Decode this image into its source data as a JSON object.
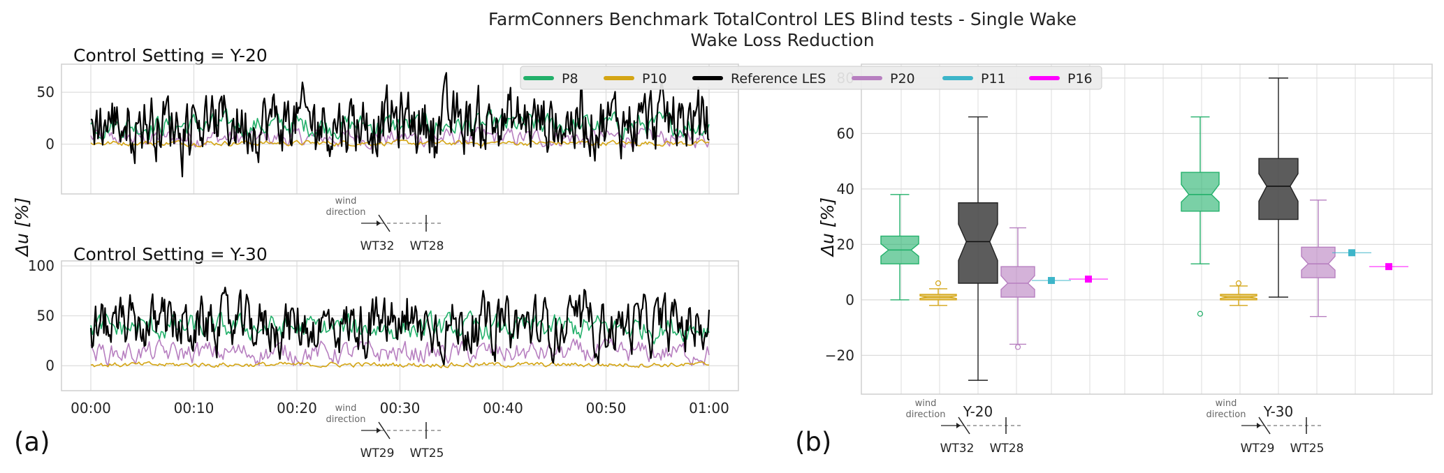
{
  "figure": {
    "title_line1": "FarmConners Benchmark TotalControl LES Blind tests - Single Wake",
    "title_line2": "Wake Loss Reduction",
    "panel_a_label": "(a)",
    "panel_b_label": "(b)",
    "ylabel": "Δu  [%]"
  },
  "legend": {
    "items": [
      {
        "name": "P8",
        "color": "#22b06a"
      },
      {
        "name": "P10",
        "color": "#d4a514"
      },
      {
        "name": "Reference LES",
        "color": "#000000"
      },
      {
        "name": "P20",
        "color": "#b77fc0"
      },
      {
        "name": "P11",
        "color": "#3db5c9"
      },
      {
        "name": "P16",
        "color": "#ff00ff"
      }
    ]
  },
  "chart_data": [
    {
      "type": "line",
      "title": "Control Setting = Y-20",
      "xlabel": "",
      "ylabel": "Δu  [%]",
      "yticks": [
        0,
        50
      ],
      "ylim": [
        -48,
        77
      ],
      "xlim": [
        0,
        60
      ],
      "grid": true,
      "note": {
        "text": "wind direction",
        "turbines": [
          "WT32",
          "WT28"
        ]
      },
      "series": [
        {
          "name": "P8",
          "color": "#22b06a",
          "mean": 18,
          "amplitude": 9
        },
        {
          "name": "P10",
          "color": "#d4a514",
          "mean": 1,
          "amplitude": 2
        },
        {
          "name": "Reference LES",
          "color": "#000000",
          "mean": 22,
          "amplitude": 25
        },
        {
          "name": "P20",
          "color": "#b77fc0",
          "mean": 6,
          "amplitude": 7
        }
      ]
    },
    {
      "type": "line",
      "title": "Control Setting = Y-30",
      "xlabel": "",
      "ylabel": "Δu  [%]",
      "xticklabels": [
        "00:00",
        "00:10",
        "00:20",
        "00:30",
        "00:40",
        "00:50",
        "01:00"
      ],
      "yticks": [
        0,
        50,
        100
      ],
      "ylim": [
        -25,
        105
      ],
      "xlim": [
        0,
        60
      ],
      "grid": true,
      "note": {
        "text": "wind direction",
        "turbines": [
          "WT29",
          "WT25"
        ]
      },
      "series": [
        {
          "name": "P8",
          "color": "#22b06a",
          "mean": 38,
          "amplitude": 10
        },
        {
          "name": "P10",
          "color": "#d4a514",
          "mean": 1,
          "amplitude": 2
        },
        {
          "name": "Reference LES",
          "color": "#000000",
          "mean": 40,
          "amplitude": 22
        },
        {
          "name": "P20",
          "color": "#b77fc0",
          "mean": 13,
          "amplitude": 9
        }
      ]
    },
    {
      "type": "box",
      "title": "",
      "ylabel": "Δu  [%]",
      "ylim": [
        -34,
        85
      ],
      "yticks": [
        -20,
        0,
        20,
        40,
        60,
        80
      ],
      "categories": [
        "Y-20",
        "Y-30"
      ],
      "grid": true,
      "notes": [
        {
          "text": "wind direction",
          "turbines": [
            "WT32",
            "WT28"
          ]
        },
        {
          "text": "wind direction",
          "turbines": [
            "WT29",
            "WT25"
          ]
        }
      ],
      "boxes": [
        {
          "group": "Y-20",
          "name": "P8",
          "color": "#22b06a",
          "whislo": 0,
          "q1": 13,
          "med": 18,
          "q3": 23,
          "whishi": 38,
          "fliers": []
        },
        {
          "group": "Y-20",
          "name": "P10",
          "color": "#d4a514",
          "whislo": -2,
          "q1": 0,
          "med": 1,
          "q3": 2,
          "whishi": 4,
          "fliers": [
            6
          ]
        },
        {
          "group": "Y-20",
          "name": "Reference LES",
          "color": "#000000",
          "whislo": -29,
          "q1": 6,
          "med": 21,
          "q3": 35,
          "whishi": 66,
          "fliers": []
        },
        {
          "group": "Y-20",
          "name": "P20",
          "color": "#b77fc0",
          "whislo": -16,
          "q1": 1,
          "med": 6,
          "q3": 12,
          "whishi": 26,
          "fliers": [
            -17
          ]
        },
        {
          "group": "Y-20",
          "name": "P11",
          "color": "#3db5c9",
          "whislo": 7,
          "q1": 7,
          "med": 7,
          "q3": 7,
          "whishi": 7,
          "fliers": []
        },
        {
          "group": "Y-20",
          "name": "P16",
          "color": "#ff00ff",
          "whislo": 7.5,
          "q1": 7.5,
          "med": 7.5,
          "q3": 7.5,
          "whishi": 7.5,
          "fliers": []
        },
        {
          "group": "Y-30",
          "name": "P8",
          "color": "#22b06a",
          "whislo": 13,
          "q1": 32,
          "med": 38,
          "q3": 46,
          "whishi": 66,
          "fliers": [
            -5
          ]
        },
        {
          "group": "Y-30",
          "name": "P10",
          "color": "#d4a514",
          "whislo": -2,
          "q1": 0,
          "med": 1,
          "q3": 2,
          "whishi": 5,
          "fliers": [
            6
          ]
        },
        {
          "group": "Y-30",
          "name": "Reference LES",
          "color": "#000000",
          "whislo": 1,
          "q1": 29,
          "med": 41,
          "q3": 51,
          "whishi": 80,
          "fliers": []
        },
        {
          "group": "Y-30",
          "name": "P20",
          "color": "#b77fc0",
          "whislo": -6,
          "q1": 8,
          "med": 13,
          "q3": 19,
          "whishi": 36,
          "fliers": []
        },
        {
          "group": "Y-30",
          "name": "P11",
          "color": "#3db5c9",
          "whislo": 17,
          "q1": 17,
          "med": 17,
          "q3": 17,
          "whishi": 17,
          "fliers": []
        },
        {
          "group": "Y-30",
          "name": "P16",
          "color": "#ff00ff",
          "whislo": 12,
          "q1": 12,
          "med": 12,
          "q3": 12,
          "whishi": 12,
          "fliers": []
        }
      ]
    }
  ]
}
